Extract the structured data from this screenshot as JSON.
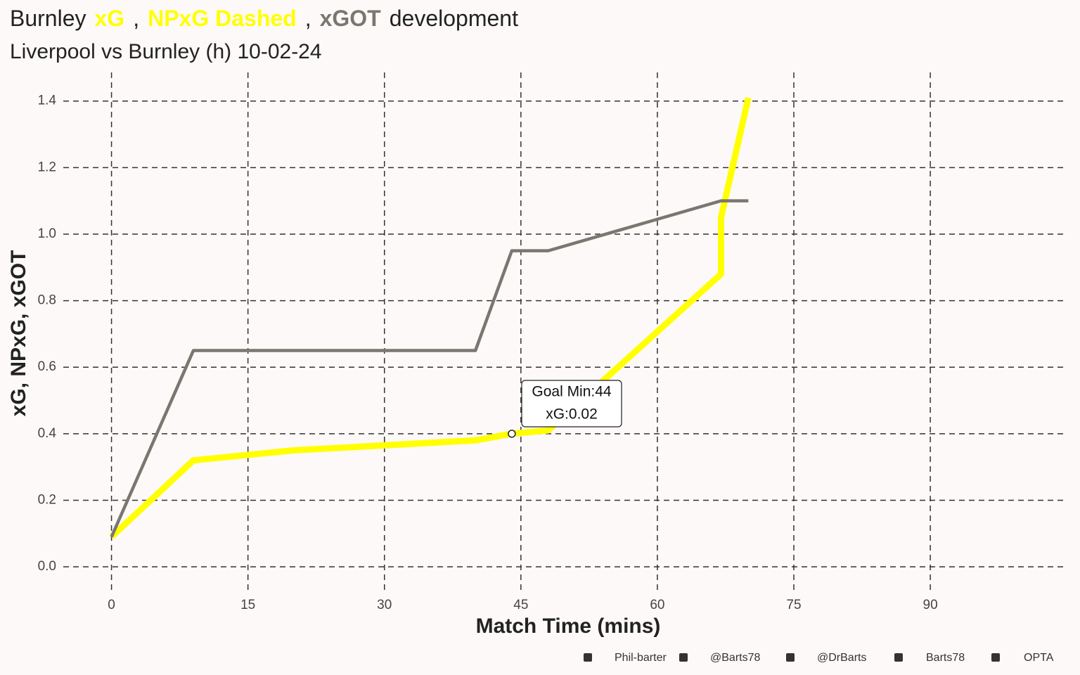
{
  "chart_data": {
    "type": "line",
    "title_parts": [
      {
        "text": "Burnley"
      },
      {
        "text": "xG",
        "color": "#ffff00"
      },
      {
        "text": ","
      },
      {
        "text": "NPxG Dashed",
        "color": "#ffff00"
      },
      {
        "text": ","
      },
      {
        "text": "xGOT",
        "color": "#7a7670"
      },
      {
        "text": "development"
      }
    ],
    "subtitle": "Liverpool vs Burnley (h) 10-02-24",
    "x_label": "Match Time (mins)",
    "y_label": "xG, NPxG, xGOT",
    "xlim": [
      -5.3,
      104.6
    ],
    "ylim": [
      -0.078,
      1.486
    ],
    "xticks": [
      0,
      15,
      30,
      45,
      60,
      75,
      90
    ],
    "yticks": [
      {
        "value": 0,
        "label": "0.0"
      },
      0.2,
      0.4,
      0.6,
      0.8,
      {
        "value": 1,
        "label": "1.0"
      },
      1.2,
      1.4
    ],
    "grid": true,
    "series": [
      {
        "name": "xG",
        "color": "#ffff00",
        "width": 9,
        "x": [
          0,
          9,
          20,
          40,
          44,
          48,
          67,
          67,
          70
        ],
        "values": [
          0.09,
          0.32,
          0.35,
          0.38,
          0.4,
          0.41,
          0.88,
          1.05,
          1.41
        ]
      },
      {
        "name": "xGOT",
        "color": "#7a7670",
        "width": 4.5,
        "x": [
          0,
          9,
          40,
          44,
          48,
          67,
          70
        ],
        "values": [
          0.09,
          0.65,
          0.65,
          0.95,
          0.95,
          1.1,
          1.1
        ]
      }
    ],
    "annotations": [
      {
        "x": 44,
        "y": 0.4,
        "lines": [
          "Goal Min:44",
          "xG:0.02"
        ]
      }
    ],
    "footer": [
      "Phil-barter",
      "@Barts78",
      "@DrBarts",
      "Barts78",
      "OPTA"
    ]
  }
}
